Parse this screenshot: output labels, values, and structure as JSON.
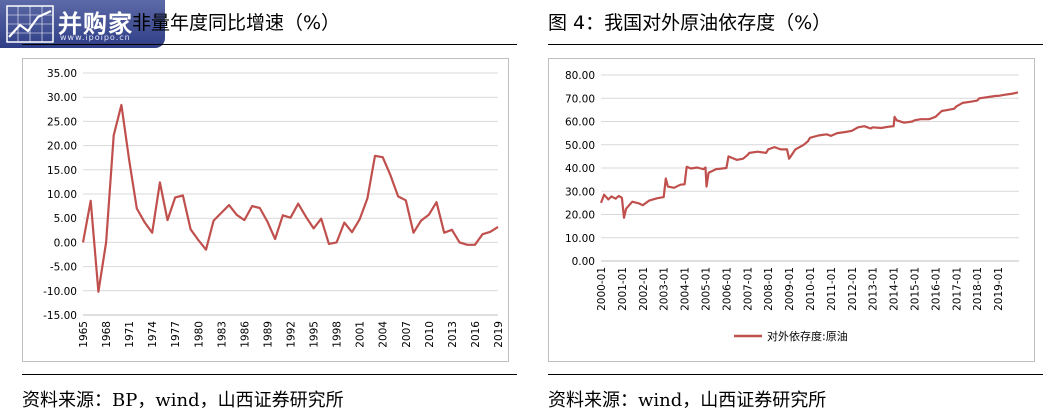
{
  "logo": {
    "text": "并购家",
    "url": "www.ipoipo.cn"
  },
  "left": {
    "title": "非量年度同比增速（%）",
    "source": "资料来源：BP，wind，山西证券研究所"
  },
  "right": {
    "title": "图 4：我国对外原油依存度（%）",
    "source": "资料来源：wind，山西证券研究所"
  },
  "chart_data": [
    {
      "type": "line",
      "title": "非量年度同比增速（%）",
      "color": "#c0504d",
      "ylim": [
        -15,
        35
      ],
      "yticks": [
        "35.00",
        "30.00",
        "25.00",
        "20.00",
        "15.00",
        "10.00",
        "5.00",
        "0.00",
        "-5.00",
        "-10.00",
        "-15.00"
      ],
      "xtick_labels": [
        "1965",
        "1968",
        "1971",
        "1974",
        "1977",
        "1980",
        "1983",
        "1986",
        "1989",
        "1992",
        "1995",
        "1998",
        "2001",
        "2004",
        "2007",
        "2010",
        "2013",
        "2016",
        "2019"
      ],
      "grid": "horizontal",
      "x": [
        1965,
        1966,
        1967,
        1968,
        1969,
        1970,
        1971,
        1972,
        1973,
        1974,
        1975,
        1976,
        1977,
        1978,
        1979,
        1980,
        1981,
        1982,
        1983,
        1984,
        1985,
        1986,
        1987,
        1988,
        1989,
        1990,
        1991,
        1992,
        1993,
        1994,
        1995,
        1996,
        1997,
        1998,
        1999,
        2000,
        2001,
        2002,
        2003,
        2004,
        2005,
        2006,
        2007,
        2008,
        2009,
        2010,
        2011,
        2012,
        2013,
        2014,
        2015,
        2016,
        2017,
        2018,
        2019
      ],
      "values": [
        0.0,
        8.6,
        -10.2,
        0.0,
        22.1,
        28.4,
        17.1,
        7.0,
        4.2,
        2.0,
        12.4,
        4.6,
        9.3,
        9.7,
        2.7,
        0.5,
        -1.5,
        4.5,
        6.1,
        7.7,
        5.7,
        4.6,
        7.5,
        7.1,
        4.3,
        0.7,
        5.6,
        5.1,
        8.0,
        5.3,
        2.9,
        4.9,
        -0.3,
        0.0,
        4.1,
        2.1,
        4.8,
        9.1,
        17.9,
        17.6,
        13.9,
        9.5,
        8.7,
        2.0,
        4.5,
        5.7,
        8.3,
        2.0,
        2.6,
        0.0,
        -0.5,
        -0.5,
        1.7,
        2.2,
        3.2
      ]
    },
    {
      "type": "line",
      "title": "图 4：我国对外原油依存度（%）",
      "color": "#c0504d",
      "ylim": [
        0,
        80
      ],
      "yticks": [
        "80.00",
        "70.00",
        "60.00",
        "50.00",
        "40.00",
        "30.00",
        "20.00",
        "10.00",
        "0.00"
      ],
      "xtick_labels": [
        "2000-01",
        "2001-01",
        "2002-01",
        "2003-01",
        "2004-01",
        "2005-01",
        "2006-01",
        "2007-01",
        "2008-01",
        "2009-01",
        "2010-01",
        "2011-01",
        "2012-01",
        "2013-01",
        "2014-01",
        "2015-01",
        "2016-01",
        "2017-01",
        "2018-01",
        "2019-01"
      ],
      "xlim": [
        2000,
        2020
      ],
      "grid": "horizontal",
      "legend": {
        "position": "bottom",
        "label": "对外依存度:原油"
      },
      "series": [
        {
          "name": "对外依存度:原油",
          "x": [
            2000.0,
            2000.15,
            2000.35,
            2000.5,
            2000.7,
            2000.85,
            2001.0,
            2001.1,
            2001.2,
            2001.5,
            2001.8,
            2002.0,
            2002.3,
            2002.7,
            2003.0,
            2003.1,
            2003.2,
            2003.5,
            2003.8,
            2004.0,
            2004.1,
            2004.3,
            2004.6,
            2004.9,
            2005.0,
            2005.05,
            2005.15,
            2005.5,
            2005.8,
            2006.0,
            2006.1,
            2006.5,
            2006.8,
            2007.0,
            2007.1,
            2007.5,
            2007.9,
            2008.0,
            2008.3,
            2008.6,
            2008.9,
            2009.0,
            2009.3,
            2009.7,
            2009.9,
            2010.0,
            2010.4,
            2010.8,
            2011.0,
            2011.3,
            2011.7,
            2012.0,
            2012.3,
            2012.6,
            2012.9,
            2013.0,
            2013.4,
            2013.8,
            2014.0,
            2014.05,
            2014.15,
            2014.5,
            2014.9,
            2015.0,
            2015.3,
            2015.7,
            2016.0,
            2016.3,
            2016.6,
            2016.9,
            2017.0,
            2017.3,
            2017.7,
            2018.0,
            2018.1,
            2018.5,
            2018.9,
            2019.0,
            2019.3,
            2019.7,
            2019.95
          ],
          "y": [
            25.0,
            28.5,
            26.5,
            27.8,
            26.8,
            28.0,
            27.2,
            18.6,
            22.5,
            25.5,
            24.8,
            24.0,
            26.0,
            27.0,
            27.5,
            35.5,
            32.0,
            31.5,
            32.8,
            33.0,
            40.5,
            39.8,
            40.2,
            39.5,
            40.2,
            32.0,
            38.0,
            39.5,
            39.8,
            40.0,
            45.0,
            43.5,
            44.0,
            45.5,
            46.5,
            47.0,
            46.5,
            48.0,
            49.0,
            48.0,
            48.0,
            44.0,
            48.0,
            50.0,
            51.5,
            53.0,
            54.0,
            54.5,
            53.8,
            55.0,
            55.5,
            56.0,
            57.5,
            58.0,
            57.0,
            57.5,
            57.2,
            57.8,
            58.0,
            62.0,
            60.5,
            59.5,
            60.0,
            60.5,
            61.0,
            61.0,
            62.0,
            64.5,
            65.0,
            65.5,
            66.5,
            68.0,
            68.5,
            69.0,
            70.0,
            70.5,
            71.0,
            71.0,
            71.5,
            72.0,
            72.5
          ]
        }
      ]
    }
  ]
}
